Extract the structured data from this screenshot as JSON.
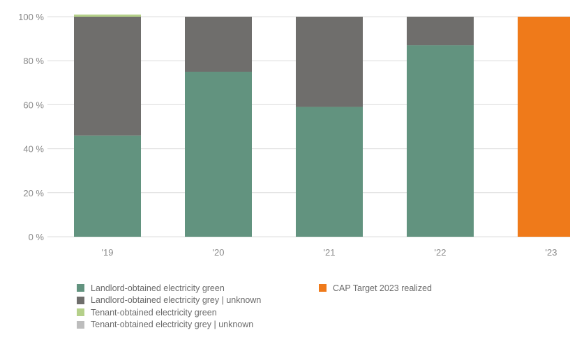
{
  "chart_data": {
    "type": "bar",
    "stacked": true,
    "categories": [
      "'19",
      "'20",
      "'21",
      "'22",
      "'23"
    ],
    "series": [
      {
        "name": "Landlord-obtained electricity green",
        "color": "#62937f",
        "values": [
          46,
          75,
          59,
          87,
          0
        ]
      },
      {
        "name": "Landlord-obtained electricity grey | unknown",
        "color": "#6f6e6c",
        "values": [
          54,
          25,
          41,
          13,
          0
        ]
      },
      {
        "name": "Tenant-obtained electricity green",
        "color": "#b5d08a",
        "values": [
          1,
          0,
          0,
          0,
          0
        ]
      },
      {
        "name": "Tenant-obtained electricity grey | unknown",
        "color": "#bdbdbd",
        "values": [
          0,
          0,
          0,
          0,
          0
        ]
      },
      {
        "name": "CAP Target 2023 realized",
        "color": "#ef7a1a",
        "values": [
          0,
          0,
          0,
          0,
          100
        ]
      }
    ],
    "ylim": [
      0,
      100
    ],
    "yticks": [
      "0 %",
      "20 %",
      "40 %",
      "60 %",
      "80 %",
      "100 %"
    ],
    "grid": true,
    "legend_position": "bottom"
  }
}
